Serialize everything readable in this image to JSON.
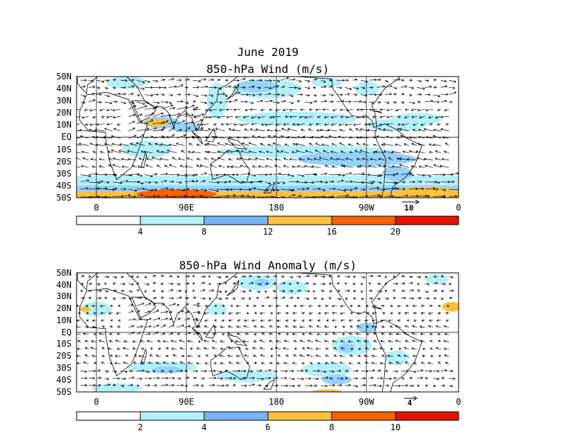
{
  "figure": {
    "title_line1": "June 2019",
    "colors": {
      "c0": "#ffffff",
      "c1": "#b4f0fa",
      "c2": "#96d2fa",
      "c3": "#78b4fa",
      "c4": "#ffc03c",
      "c5": "#ff6000",
      "c6": "#e11400"
    }
  },
  "panels": [
    {
      "title": "850-hPa Wind (m/s)",
      "lat_labels": [
        "50N",
        "40N",
        "30N",
        "20N",
        "10N",
        "EQ",
        "10S",
        "20S",
        "30S",
        "40S",
        "50S"
      ],
      "lon_labels": [
        "0",
        "90E",
        "180",
        "90W",
        "0"
      ],
      "reference_vector": "10",
      "colorbar_ticks": [
        "4",
        "8",
        "12",
        "16",
        "20"
      ]
    },
    {
      "title": "850-hPa Wind Anomaly (m/s)",
      "lat_labels": [
        "50N",
        "40N",
        "30N",
        "20N",
        "10N",
        "EQ",
        "10S",
        "20S",
        "30S",
        "40S",
        "50S"
      ],
      "lon_labels": [
        "0",
        "90E",
        "180",
        "90W",
        "0"
      ],
      "reference_vector": "4",
      "colorbar_ticks": [
        "2",
        "4",
        "6",
        "8",
        "10"
      ]
    }
  ]
}
